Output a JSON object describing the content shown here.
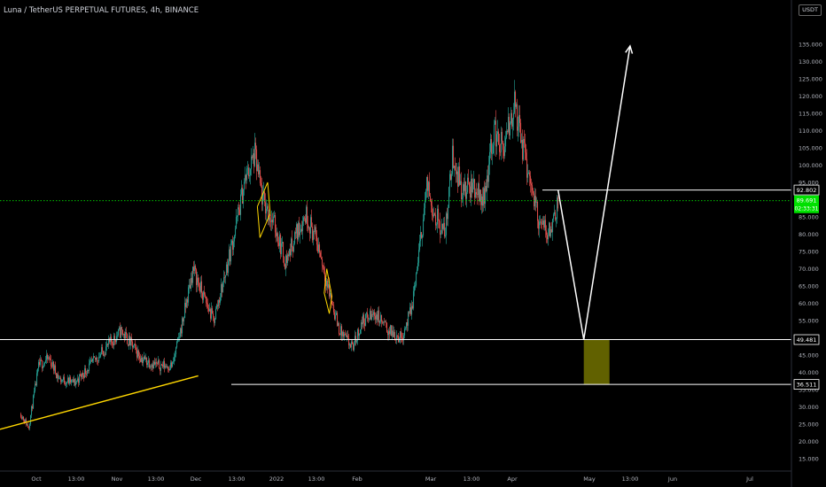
{
  "header": {
    "title": "Luna / TetherUS PERPETUAL FUTURES, 4h, BINANCE",
    "currency_badge": "USDT"
  },
  "colors": {
    "background": "#000000",
    "up_candle": "#26a69a",
    "down_candle": "#ef5350",
    "trendline": "#ffd700",
    "drawing": "#ffffff",
    "current_price": "#00e000",
    "target_zone": "#6b6b00"
  },
  "chart_data": {
    "type": "candlestick",
    "ylim": [
      11,
      138
    ],
    "y_ticks": [
      15,
      20,
      25,
      30,
      35,
      40,
      45,
      50,
      55,
      60,
      65,
      70,
      75,
      80,
      85,
      90,
      95,
      100,
      105,
      110,
      115,
      120,
      125,
      130,
      135
    ],
    "y_tick_labels": [
      "15.000",
      "20.000",
      "25.000",
      "30.000",
      "35.000",
      "40.000",
      "45.000",
      "50.000",
      "55.000",
      "60.000",
      "65.000",
      "70.000",
      "75.000",
      "80.000",
      "85.000",
      "90.000",
      "95.000",
      "100.000",
      "105.000",
      "110.000",
      "115.000",
      "120.000",
      "125.000",
      "130.000",
      "135.000"
    ],
    "x_ticks": [
      "Oct",
      "13:00",
      "Nov",
      "13:00",
      "Dec",
      "13:00",
      "2022",
      "13:00",
      "Feb",
      "Mar",
      "13:00",
      "Apr",
      "May",
      "13:00",
      "Jun",
      "Jul"
    ],
    "approx_price_path": [
      [
        "2021-09-25",
        28
      ],
      [
        "2021-09-28",
        24
      ],
      [
        "2021-10-02",
        42
      ],
      [
        "2021-10-06",
        44
      ],
      [
        "2021-10-10",
        38
      ],
      [
        "2021-10-16",
        37
      ],
      [
        "2021-10-22",
        42
      ],
      [
        "2021-10-28",
        47
      ],
      [
        "2021-11-03",
        52
      ],
      [
        "2021-11-07",
        48
      ],
      [
        "2021-11-11",
        44
      ],
      [
        "2021-11-17",
        42
      ],
      [
        "2021-11-23",
        42
      ],
      [
        "2021-11-27",
        55
      ],
      [
        "2021-12-01",
        70
      ],
      [
        "2021-12-05",
        62
      ],
      [
        "2021-12-09",
        55
      ],
      [
        "2021-12-13",
        67
      ],
      [
        "2021-12-17",
        80
      ],
      [
        "2021-12-21",
        95
      ],
      [
        "2021-12-25",
        103
      ],
      [
        "2021-12-28",
        90
      ],
      [
        "2022-01-02",
        82
      ],
      [
        "2022-01-06",
        72
      ],
      [
        "2022-01-10",
        80
      ],
      [
        "2022-01-14",
        86
      ],
      [
        "2022-01-19",
        76
      ],
      [
        "2022-01-23",
        63
      ],
      [
        "2022-01-27",
        52
      ],
      [
        "2022-02-01",
        47
      ],
      [
        "2022-02-05",
        55
      ],
      [
        "2022-02-10",
        57
      ],
      [
        "2022-02-15",
        52
      ],
      [
        "2022-02-20",
        50
      ],
      [
        "2022-02-24",
        58
      ],
      [
        "2022-02-27",
        75
      ],
      [
        "2022-03-02",
        94
      ],
      [
        "2022-03-05",
        86
      ],
      [
        "2022-03-09",
        80
      ],
      [
        "2022-03-12",
        103
      ],
      [
        "2022-03-16",
        92
      ],
      [
        "2022-03-20",
        94
      ],
      [
        "2022-03-24",
        90
      ],
      [
        "2022-03-28",
        110
      ],
      [
        "2022-04-01",
        104
      ],
      [
        "2022-04-05",
        118
      ],
      [
        "2022-04-08",
        106
      ],
      [
        "2022-04-12",
        93
      ],
      [
        "2022-04-15",
        82
      ],
      [
        "2022-04-19",
        81
      ],
      [
        "2022-04-22",
        90
      ]
    ],
    "horizontal_levels": [
      {
        "price": 92.802,
        "label": "92.802"
      },
      {
        "price": 49.481,
        "label": "49.481"
      },
      {
        "price": 36.511,
        "label": "36.511"
      }
    ],
    "current_price": {
      "price": 89.691,
      "label": "89.691",
      "sublabel": "02:33:31"
    },
    "trendline": {
      "from": [
        "2021-09-25",
        23.5
      ],
      "to": [
        "2021-12-03",
        39
      ]
    },
    "projection_path": [
      [
        "2022-04-22",
        92.8
      ],
      [
        "2022-05-02",
        49.5
      ],
      [
        "2022-05-20",
        134.5
      ]
    ],
    "target_zone": {
      "from_date": "2022-05-02",
      "to_date": "2022-05-12",
      "high": 49.481,
      "low": 36.511
    },
    "flag_patterns": [
      [
        [
          "2021-12-26",
          88
        ],
        [
          "2021-12-30",
          95
        ],
        [
          "2021-12-31",
          86
        ],
        [
          "2021-12-27",
          79
        ],
        [
          "2021-12-26",
          88
        ]
      ],
      [
        [
          "2022-01-22",
          70
        ],
        [
          "2022-01-24",
          62
        ],
        [
          "2022-01-23",
          57
        ],
        [
          "2022-01-21",
          63
        ],
        [
          "2022-01-22",
          70
        ]
      ]
    ]
  }
}
